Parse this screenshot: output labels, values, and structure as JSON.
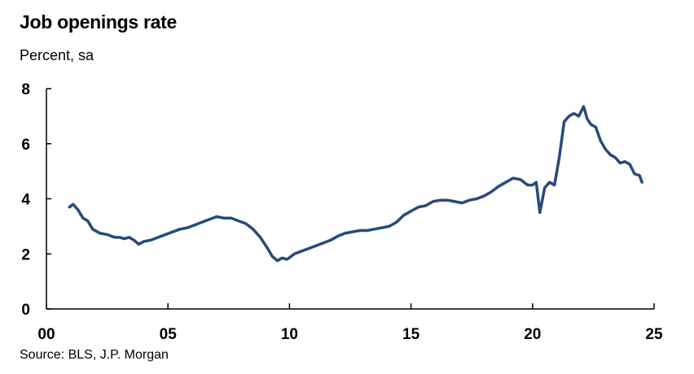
{
  "title": "Job openings rate",
  "subtitle": "Percent, sa",
  "source": "Source: BLS, J.P. Morgan",
  "colors": {
    "line": "#274a7c",
    "axis": "#000000"
  },
  "chart_data": {
    "type": "line",
    "title": "Job openings rate",
    "ylabel": "Percent, sa",
    "xlim": [
      2000,
      2025
    ],
    "ylim": [
      0,
      8
    ],
    "x_ticks": [
      2000,
      2005,
      2010,
      2015,
      2020,
      2025
    ],
    "x_tick_labels": [
      "00",
      "05",
      "10",
      "15",
      "20",
      "25"
    ],
    "y_ticks": [
      0,
      2,
      4,
      6,
      8
    ],
    "y_tick_labels": [
      "0",
      "2",
      "4",
      "6",
      "8"
    ],
    "grid": false,
    "series": [
      {
        "x": [
          2000.95,
          2001.1,
          2001.3,
          2001.5,
          2001.7,
          2001.9,
          2002.2,
          2002.5,
          2002.8,
          2003.0,
          2003.2,
          2003.4,
          2003.6,
          2003.8,
          2004.0,
          2004.3,
          2004.6,
          2004.9,
          2005.2,
          2005.5,
          2005.8,
          2006.1,
          2006.4,
          2006.7,
          2007.0,
          2007.3,
          2007.6,
          2007.9,
          2008.2,
          2008.5,
          2008.8,
          2009.1,
          2009.3,
          2009.5,
          2009.7,
          2009.9,
          2010.2,
          2010.5,
          2010.8,
          2011.1,
          2011.4,
          2011.7,
          2012.0,
          2012.3,
          2012.6,
          2012.9,
          2013.2,
          2013.5,
          2013.8,
          2014.1,
          2014.4,
          2014.7,
          2015.0,
          2015.3,
          2015.6,
          2015.9,
          2016.2,
          2016.5,
          2016.8,
          2017.1,
          2017.4,
          2017.7,
          2018.0,
          2018.3,
          2018.6,
          2018.9,
          2019.2,
          2019.5,
          2019.8,
          2020.0,
          2020.15,
          2020.3,
          2020.5,
          2020.7,
          2020.9,
          2021.1,
          2021.3,
          2021.5,
          2021.7,
          2021.9,
          2022.1,
          2022.25,
          2022.4,
          2022.6,
          2022.8,
          2023.0,
          2023.2,
          2023.4,
          2023.6,
          2023.8,
          2024.0,
          2024.2,
          2024.4,
          2024.5
        ],
        "y": [
          3.7,
          3.8,
          3.6,
          3.3,
          3.2,
          2.9,
          2.75,
          2.7,
          2.6,
          2.6,
          2.55,
          2.6,
          2.5,
          2.35,
          2.45,
          2.5,
          2.6,
          2.7,
          2.8,
          2.9,
          2.95,
          3.05,
          3.15,
          3.25,
          3.35,
          3.3,
          3.3,
          3.2,
          3.1,
          2.9,
          2.6,
          2.2,
          1.9,
          1.75,
          1.85,
          1.8,
          2.0,
          2.1,
          2.2,
          2.3,
          2.4,
          2.5,
          2.65,
          2.75,
          2.8,
          2.85,
          2.85,
          2.9,
          2.95,
          3.0,
          3.15,
          3.4,
          3.55,
          3.7,
          3.75,
          3.9,
          3.95,
          3.95,
          3.9,
          3.85,
          3.95,
          4.0,
          4.1,
          4.25,
          4.45,
          4.6,
          4.75,
          4.7,
          4.5,
          4.5,
          4.6,
          3.5,
          4.4,
          4.6,
          4.5,
          5.5,
          6.8,
          7.0,
          7.1,
          7.0,
          7.35,
          6.9,
          6.7,
          6.6,
          6.1,
          5.8,
          5.6,
          5.5,
          5.3,
          5.35,
          5.25,
          4.9,
          4.85,
          4.6
        ]
      }
    ]
  }
}
